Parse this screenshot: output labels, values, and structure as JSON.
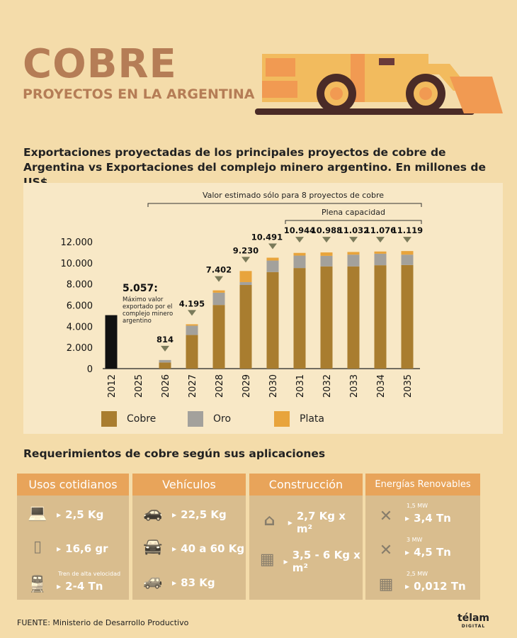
{
  "header": {
    "title": "COBRE",
    "subtitle": "PROYECTOS EN LA ARGENTINA"
  },
  "headline": "Exportaciones proyectadas de los principales proyectos de cobre de Argentina vs Exportaciones del complejo minero argentino. En millones de US$.",
  "chart_data": {
    "type": "bar",
    "stacked": true,
    "categories": [
      "2012",
      "2025",
      "2026",
      "2027",
      "2028",
      "2029",
      "2030",
      "2031",
      "2032",
      "2033",
      "2034",
      "2035"
    ],
    "series": [
      {
        "name": "Cobre",
        "color": "#a97d2f",
        "values": [
          null,
          0,
          580,
          3180,
          6020,
          7910,
          9133,
          9513,
          9667,
          9667,
          9778,
          9800
        ]
      },
      {
        "name": "Oro",
        "color": "#a3a19c",
        "values": [
          null,
          0,
          234,
          880,
          1160,
          270,
          1087,
          1177,
          1000,
          1111,
          1089,
          978
        ]
      },
      {
        "name": "Plata",
        "color": "#e8a43c",
        "values": [
          null,
          0,
          0,
          135,
          222,
          1050,
          271,
          254,
          321,
          254,
          209,
          341
        ]
      }
    ],
    "historical": {
      "category": "2012",
      "value": 5057,
      "color": "#111111",
      "label": "5.057:",
      "note": "Máximo valor exportado por el complejo minero argentino"
    },
    "totals": [
      {
        "category": "2026",
        "label": "814"
      },
      {
        "category": "2027",
        "label": "4.195"
      },
      {
        "category": "2028",
        "label": "7.402"
      },
      {
        "category": "2029",
        "label": "9.230"
      },
      {
        "category": "2030",
        "label": "10.491"
      },
      {
        "category": "2031",
        "label": "10.944"
      },
      {
        "category": "2032",
        "label": "10.988"
      },
      {
        "category": "2033",
        "label": "11.032"
      },
      {
        "category": "2034",
        "label": "11.076"
      },
      {
        "category": "2035",
        "label": "11.119"
      }
    ],
    "yticks": [
      {
        "v": 0,
        "l": "0"
      },
      {
        "v": 2000,
        "l": "2.000"
      },
      {
        "v": 4000,
        "l": "4.000"
      },
      {
        "v": 6000,
        "l": "6.000"
      },
      {
        "v": 8000,
        "l": "8.000"
      },
      {
        "v": 10000,
        "l": "10.000"
      },
      {
        "v": 12000,
        "l": "12.000"
      }
    ],
    "ylim": [
      0,
      12000
    ],
    "brackets": [
      {
        "label": "Valor estimado sólo para 8 proyectos de cobre",
        "from": "2026",
        "to": "2035"
      },
      {
        "label": "Plena capacidad",
        "from": "2031",
        "to": "2035"
      }
    ],
    "legend_position": "bottom"
  },
  "requirements": {
    "title": "Requerimientos de cobre según sus aplicaciones",
    "cards": [
      {
        "title": "Usos cotidianos",
        "items": [
          {
            "icon": "laptop-icon",
            "value": "2,5 Kg"
          },
          {
            "icon": "smartphone-icon",
            "value": "16,6 gr"
          },
          {
            "icon": "train-icon",
            "caption": "Tren de alta velocidad",
            "value": "2-4 Tn"
          }
        ]
      },
      {
        "title": "Vehículos",
        "items": [
          {
            "icon": "car-icon",
            "value": "22,5 Kg"
          },
          {
            "icon": "hybrid-car-icon",
            "value": "40 a 60 Kg"
          },
          {
            "icon": "electric-car-icon",
            "value": "83 Kg"
          }
        ]
      },
      {
        "title": "Construcción",
        "items": [
          {
            "icon": "house-icon",
            "value": "2,7 Kg x m²"
          },
          {
            "icon": "building-icon",
            "value": "3,5 - 6 Kg x m²"
          }
        ]
      },
      {
        "title": "Energías Renovables",
        "items": [
          {
            "icon": "wind-turbine-icon",
            "caption": "1,5 MW",
            "value": "3,4 Tn"
          },
          {
            "icon": "wind-turbine-icon",
            "caption": "3 MW",
            "value": "4,5 Tn"
          },
          {
            "icon": "solar-panel-icon",
            "caption": "2,5 MW",
            "value": "0,012 Tn"
          }
        ]
      }
    ]
  },
  "footer": {
    "source": "FUENTE: Ministerio de Desarrollo Productivo",
    "logo": "télam",
    "logo_sub": "DIGITAL"
  }
}
